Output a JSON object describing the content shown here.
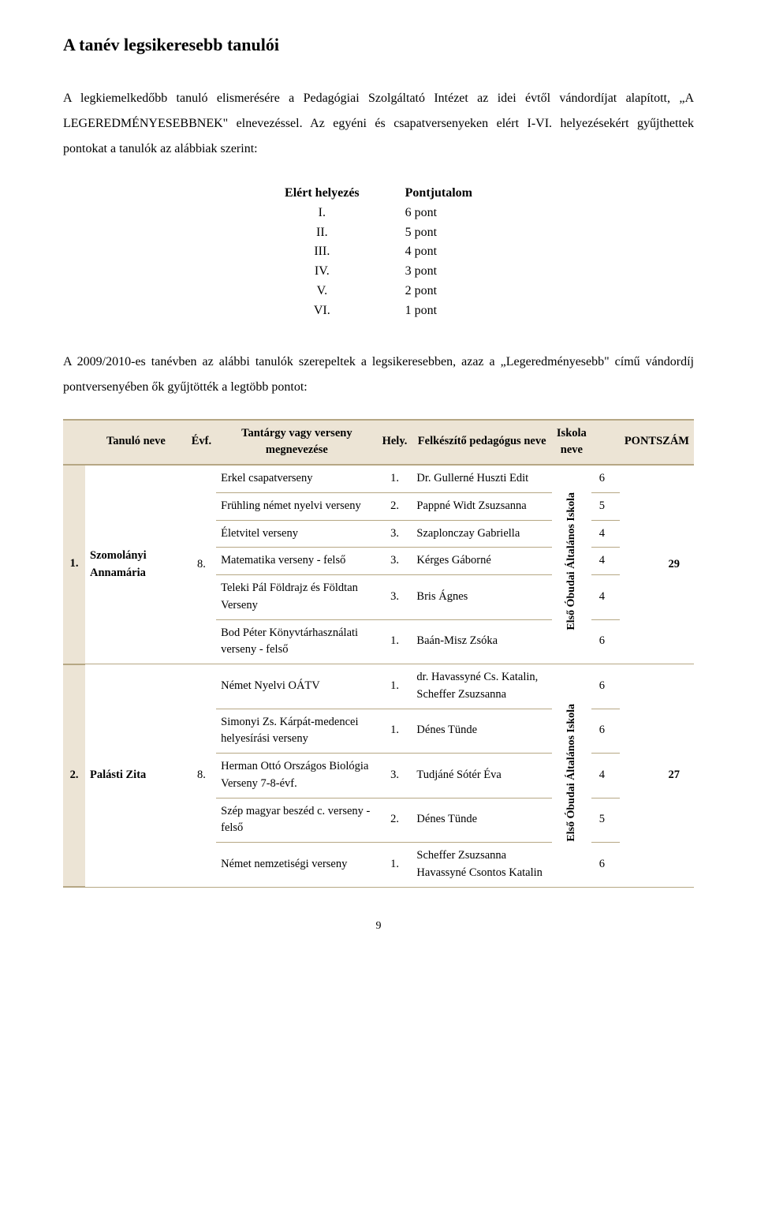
{
  "title": "A tanév legsikeresebb tanulói",
  "para1": "A legkiemelkedőbb tanuló elismerésére a Pedagógiai Szolgáltató Intézet az idei évtől vándordíjat alapított, „A LEGEREDMÉNYESEBBNEK\" elnevezéssel. Az egyéni és csapatversenyeken elért I-VI. helyezésekért gyűjthettek pontokat a tanulók az alábbiak szerint:",
  "para2": "A 2009/2010-es tanévben az alábbi tanulók szerepeltek a legsikeresebben, azaz a „Legeredményesebb\" című vándordíj pontversenyében ők gyűjtötték a legtöbb pontot:",
  "pont_head": {
    "left": "Elért helyezés",
    "right": "Pontjutalom"
  },
  "pont_rows": [
    {
      "left": "I.",
      "right": "6 pont"
    },
    {
      "left": "II.",
      "right": "5 pont"
    },
    {
      "left": "III.",
      "right": "4 pont"
    },
    {
      "left": "IV.",
      "right": "3 pont"
    },
    {
      "left": "V.",
      "right": "2 pont"
    },
    {
      "left": "VI.",
      "right": "1 pont"
    }
  ],
  "head": {
    "col1": "",
    "col2": "Tanuló neve",
    "col3": "Évf.",
    "col4": "Tantárgy vagy verseny megnevezése",
    "col5": "Hely.",
    "col6": "Felkészítő pedagógus neve",
    "col7": "Iskola neve",
    "col8": "",
    "col9": "PONTSZÁM"
  },
  "group1": {
    "idx": "1.",
    "name": "Szomolányi Annamária",
    "grade": "8.",
    "school": "Első Óbudai Általános Iskola",
    "pontszam": "29",
    "rows": [
      {
        "t": "Erkel csapatverseny",
        "h": "1.",
        "p": "Dr. Gullerné Huszti Edit",
        "pt": "6"
      },
      {
        "t": "Frühling német nyelvi verseny",
        "h": "2.",
        "p": "Pappné Widt Zsuzsanna",
        "pt": "5"
      },
      {
        "t": "Életvitel verseny",
        "h": "3.",
        "p": "Szaplonczay Gabriella",
        "pt": "4"
      },
      {
        "t": "Matematika verseny - felső",
        "h": "3.",
        "p": "Kérges Gáborné",
        "pt": "4"
      },
      {
        "t": "Teleki Pál Földrajz és Földtan Verseny",
        "h": "3.",
        "p": "Bris Ágnes",
        "pt": "4"
      },
      {
        "t": "Bod Péter Könyvtárhasználati verseny - felső",
        "h": "1.",
        "p": "Baán-Misz Zsóka",
        "pt": "6"
      }
    ]
  },
  "group2": {
    "idx": "2.",
    "name": "Palásti Zita",
    "grade": "8.",
    "school": "Első Óbudai Általános Iskola",
    "pontszam": "27",
    "rows": [
      {
        "t": "Német Nyelvi OÁTV",
        "h": "1.",
        "p": "dr. Havassyné Cs. Katalin, Scheffer Zsuzsanna",
        "pt": "6"
      },
      {
        "t": "Simonyi Zs. Kárpát-medencei helyesírási verseny",
        "h": "1.",
        "p": "Dénes Tünde",
        "pt": "6"
      },
      {
        "t": "Herman Ottó Országos Biológia Verseny 7-8-évf.",
        "h": "3.",
        "p": "Tudjáné Sótér Éva",
        "pt": "4"
      },
      {
        "t": "Szép magyar beszéd c. verseny - felső",
        "h": "2.",
        "p": "Dénes Tünde",
        "pt": "5"
      },
      {
        "t": "Német nemzetiségi verseny",
        "h": "1.",
        "p": "Scheffer Zsuzsanna Havassyné Csontos Katalin",
        "pt": "6"
      }
    ]
  },
  "page_number": "9"
}
